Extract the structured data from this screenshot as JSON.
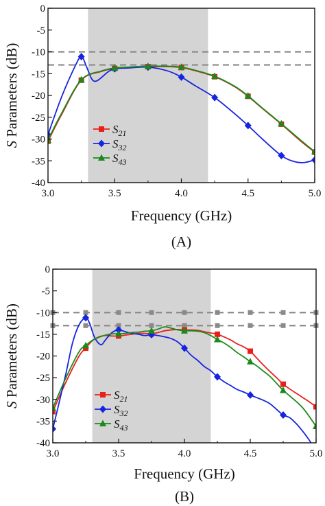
{
  "chart_data": [
    {
      "type": "line",
      "panel_label": "(A)",
      "xlabel": "Frequency (GHz)",
      "ylabel_italic": "S",
      "ylabel_rest": " Parameters (dB)",
      "xlim": [
        3.0,
        5.0
      ],
      "ylim": [
        -40,
        0
      ],
      "x_ticks": [
        "3.0",
        "3.5",
        "4.0",
        "4.5",
        "5.0"
      ],
      "y_ticks": [
        "0",
        "-5",
        "-10",
        "-15",
        "-20",
        "-25",
        "-30",
        "-35",
        "-40"
      ],
      "grid": false,
      "legend_position": "lower-left",
      "shaded_band": [
        3.3,
        4.2
      ],
      "reference_lines": [
        -10,
        -13
      ],
      "reference_marker_x": [],
      "series": [
        {
          "name_base": "S",
          "name_sub": "21",
          "color": "#e8201c",
          "marker": "square",
          "x": [
            3.0,
            3.1,
            3.25,
            3.4,
            3.5,
            3.6,
            3.75,
            3.9,
            4.0,
            4.1,
            4.25,
            4.4,
            4.5,
            4.6,
            4.75,
            4.9,
            5.0
          ],
          "y": [
            -30.5,
            -24.5,
            -16.5,
            -14.5,
            -13.8,
            -13.6,
            -13.4,
            -13.4,
            -13.6,
            -14.3,
            -15.7,
            -18.0,
            -20.2,
            -22.8,
            -26.6,
            -30.6,
            -33.0
          ],
          "marker_x": [
            3.0,
            3.25,
            3.5,
            3.75,
            4.0,
            4.25,
            4.5,
            4.75,
            5.0
          ],
          "marker_y": [
            -30.5,
            -16.5,
            -13.8,
            -13.4,
            -13.6,
            -15.7,
            -20.2,
            -26.6,
            -33.0
          ]
        },
        {
          "name_base": "S",
          "name_sub": "32",
          "color": "#1624e0",
          "marker": "diamond",
          "x": [
            3.0,
            3.1,
            3.2,
            3.25,
            3.29,
            3.33,
            3.37,
            3.45,
            3.5,
            3.6,
            3.75,
            3.9,
            4.0,
            4.1,
            4.25,
            4.4,
            4.5,
            4.6,
            4.75,
            4.85,
            4.92,
            5.0
          ],
          "y": [
            -29.0,
            -20.5,
            -13.5,
            -11.1,
            -13.5,
            -16.3,
            -16.6,
            -14.6,
            -13.9,
            -13.7,
            -13.5,
            -14.4,
            -15.8,
            -17.7,
            -20.5,
            -24.2,
            -26.9,
            -29.8,
            -33.8,
            -35.2,
            -35.4,
            -34.8
          ],
          "marker_x": [
            3.0,
            3.25,
            3.5,
            3.75,
            4.0,
            4.25,
            4.5,
            4.75,
            5.0
          ],
          "marker_y": [
            -29.0,
            -11.1,
            -13.9,
            -13.5,
            -15.8,
            -20.5,
            -26.9,
            -33.8,
            -34.8
          ]
        },
        {
          "name_base": "S",
          "name_sub": "43",
          "color": "#1a8a1a",
          "marker": "triangle",
          "x": [
            3.0,
            3.1,
            3.25,
            3.4,
            3.5,
            3.6,
            3.75,
            3.9,
            4.0,
            4.1,
            4.25,
            4.4,
            4.5,
            4.6,
            4.75,
            4.9,
            5.0
          ],
          "y": [
            -30.2,
            -24.2,
            -16.4,
            -14.4,
            -13.7,
            -13.5,
            -13.3,
            -13.3,
            -13.5,
            -14.2,
            -15.6,
            -17.9,
            -20.1,
            -22.7,
            -26.5,
            -30.4,
            -32.9
          ],
          "marker_x": [
            3.0,
            3.25,
            3.5,
            3.75,
            4.0,
            4.25,
            4.5,
            4.75,
            5.0
          ],
          "marker_y": [
            -30.2,
            -16.4,
            -13.7,
            -13.3,
            -13.5,
            -15.6,
            -20.1,
            -26.5,
            -32.9
          ]
        }
      ]
    },
    {
      "type": "line",
      "panel_label": "(B)",
      "xlabel": "Frequency (GHz)",
      "ylabel_italic": "S",
      "ylabel_rest": " Parameters (dB)",
      "xlim": [
        3.0,
        5.0
      ],
      "ylim": [
        -40,
        0
      ],
      "x_ticks": [
        "3.0",
        "3.5",
        "4.0",
        "4.5",
        "5.0"
      ],
      "y_ticks": [
        "0",
        "-5",
        "-10",
        "-15",
        "-20",
        "-25",
        "-30",
        "-35",
        "-40"
      ],
      "grid": false,
      "legend_position": "lower-left",
      "shaded_band": [
        3.3,
        4.2
      ],
      "reference_lines": [
        -10,
        -13
      ],
      "reference_marker_x": [
        3.0,
        3.25,
        3.5,
        3.75,
        4.0,
        4.25,
        4.5,
        4.75,
        5.0
      ],
      "series": [
        {
          "name_base": "S",
          "name_sub": "21",
          "color": "#e8201c",
          "marker": "square",
          "x": [
            3.0,
            3.1,
            3.2,
            3.25,
            3.3,
            3.35,
            3.4,
            3.45,
            3.5,
            3.55,
            3.6,
            3.65,
            3.7,
            3.75,
            3.8,
            3.85,
            3.9,
            3.95,
            4.0,
            4.05,
            4.1,
            4.15,
            4.2,
            4.25,
            4.3,
            4.35,
            4.4,
            4.45,
            4.5,
            4.55,
            4.6,
            4.65,
            4.7,
            4.75,
            4.8,
            4.85,
            4.9,
            4.95,
            5.0
          ],
          "y": [
            -32.8,
            -26.0,
            -20.0,
            -18.2,
            -16.5,
            -15.6,
            -15.3,
            -15.4,
            -15.4,
            -15.2,
            -15.0,
            -14.8,
            -14.8,
            -14.9,
            -14.6,
            -14.2,
            -14.0,
            -13.9,
            -14.0,
            -14.0,
            -14.1,
            -14.4,
            -14.7,
            -15.0,
            -15.6,
            -16.3,
            -17.2,
            -17.9,
            -18.9,
            -20.5,
            -22.1,
            -23.6,
            -25.0,
            -26.5,
            -27.6,
            -28.6,
            -29.6,
            -30.6,
            -31.7
          ],
          "marker_x": [
            3.0,
            3.25,
            3.5,
            3.75,
            4.0,
            4.25,
            4.5,
            4.75,
            5.0
          ],
          "marker_y": [
            -32.8,
            -18.2,
            -15.4,
            -14.9,
            -14.0,
            -15.0,
            -18.9,
            -26.5,
            -31.7
          ]
        },
        {
          "name_base": "S",
          "name_sub": "32",
          "color": "#1624e0",
          "marker": "diamond",
          "x": [
            3.0,
            3.05,
            3.1,
            3.15,
            3.2,
            3.25,
            3.28,
            3.31,
            3.34,
            3.37,
            3.4,
            3.45,
            3.5,
            3.55,
            3.6,
            3.65,
            3.7,
            3.75,
            3.8,
            3.85,
            3.9,
            3.95,
            4.0,
            4.05,
            4.1,
            4.15,
            4.2,
            4.25,
            4.3,
            4.35,
            4.4,
            4.45,
            4.5,
            4.55,
            4.6,
            4.65,
            4.7,
            4.75,
            4.8,
            4.85,
            4.9,
            4.93,
            4.96
          ],
          "y": [
            -36.8,
            -30.5,
            -24.0,
            -17.0,
            -12.8,
            -11.2,
            -12.5,
            -15.2,
            -16.8,
            -17.4,
            -16.3,
            -14.6,
            -14.0,
            -14.4,
            -14.8,
            -15.0,
            -15.3,
            -15.1,
            -15.3,
            -15.6,
            -16.0,
            -16.8,
            -18.2,
            -19.8,
            -21.0,
            -22.4,
            -23.4,
            -24.8,
            -25.9,
            -26.8,
            -27.7,
            -28.3,
            -29.0,
            -29.6,
            -30.2,
            -31.0,
            -32.3,
            -33.6,
            -34.2,
            -35.6,
            -37.4,
            -38.6,
            -39.9
          ],
          "marker_x": [
            3.0,
            3.25,
            3.5,
            3.75,
            4.0,
            4.25,
            4.5,
            4.75
          ],
          "marker_y": [
            -36.8,
            -11.2,
            -14.0,
            -15.1,
            -18.2,
            -24.8,
            -29.0,
            -33.6
          ]
        },
        {
          "name_base": "S",
          "name_sub": "43",
          "color": "#1a8a1a",
          "marker": "triangle",
          "x": [
            3.0,
            3.1,
            3.2,
            3.25,
            3.3,
            3.35,
            3.4,
            3.45,
            3.5,
            3.55,
            3.6,
            3.65,
            3.7,
            3.75,
            3.8,
            3.85,
            3.9,
            3.95,
            4.0,
            4.05,
            4.1,
            4.15,
            4.2,
            4.25,
            4.3,
            4.35,
            4.4,
            4.45,
            4.5,
            4.55,
            4.6,
            4.65,
            4.7,
            4.75,
            4.8,
            4.85,
            4.9,
            4.95,
            5.0
          ],
          "y": [
            -32.0,
            -25.0,
            -19.0,
            -17.6,
            -16.4,
            -15.7,
            -15.2,
            -14.9,
            -14.9,
            -14.8,
            -14.6,
            -14.5,
            -14.3,
            -14.2,
            -13.8,
            -13.3,
            -13.6,
            -14.0,
            -14.2,
            -14.2,
            -14.3,
            -14.6,
            -15.3,
            -16.2,
            -17.0,
            -18.0,
            -19.2,
            -20.2,
            -21.3,
            -22.3,
            -23.5,
            -24.7,
            -26.3,
            -27.9,
            -29.2,
            -30.5,
            -32.0,
            -34.0,
            -36.2
          ],
          "marker_x": [
            3.0,
            3.25,
            3.5,
            3.75,
            4.0,
            4.25,
            4.5,
            4.75,
            5.0
          ],
          "marker_y": [
            -32.0,
            -17.6,
            -14.9,
            -14.2,
            -14.2,
            -16.2,
            -21.3,
            -27.9,
            -36.2
          ]
        }
      ]
    }
  ]
}
